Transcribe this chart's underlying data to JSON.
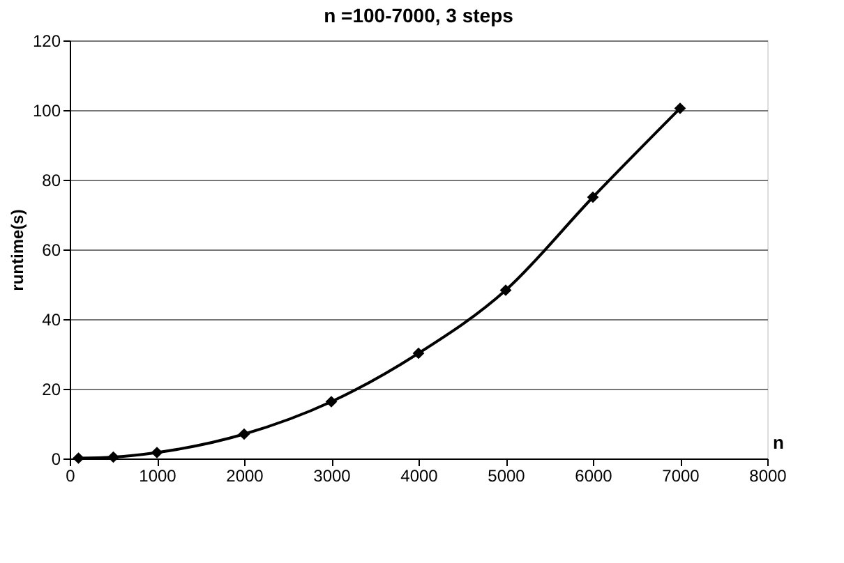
{
  "chart_data": {
    "type": "line",
    "title": "n =100-7000, 3 steps",
    "xlabel": "n",
    "ylabel": "runtime(s)",
    "x": [
      100,
      500,
      1000,
      2000,
      3000,
      4000,
      5000,
      6000,
      7000
    ],
    "series": [
      {
        "color": "#000000",
        "values": [
          0.1,
          0.4,
          1.7,
          7,
          16.3,
          30.2,
          48.3,
          75,
          100.5
        ]
      }
    ],
    "xlim": [
      0,
      8000
    ],
    "xticks": [
      0,
      1000,
      2000,
      3000,
      4000,
      5000,
      6000,
      7000,
      8000
    ],
    "ylim": [
      0,
      120
    ],
    "yticks": [
      0,
      20,
      40,
      60,
      80,
      100,
      120
    ],
    "grid": "y",
    "marker": "diamond",
    "line_style": "solid"
  }
}
